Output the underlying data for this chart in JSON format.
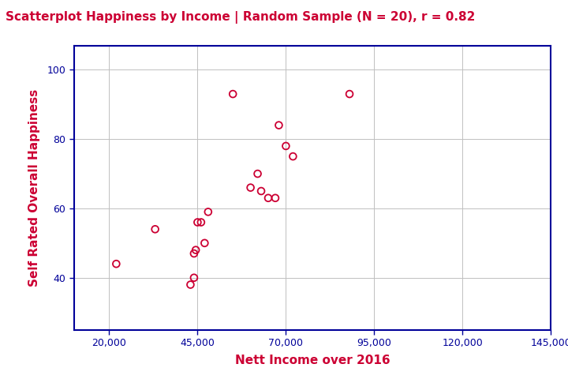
{
  "title": "Scatterplot Happiness by Income | Random Sample (N = 20), r = 0.82",
  "xlabel": "Nett Income over 2016",
  "ylabel": "Self Rated Overall Happiness",
  "title_color": "#cc0033",
  "label_color": "#cc0033",
  "axis_color": "#000099",
  "marker_color": "#cc0033",
  "background_color": "#ffffff",
  "grid_color": "#c0c0c0",
  "xlim": [
    10000,
    145000
  ],
  "ylim": [
    25,
    107
  ],
  "xticks": [
    20000,
    45000,
    70000,
    95000,
    120000,
    145000
  ],
  "yticks": [
    40,
    60,
    80,
    100
  ],
  "x": [
    22000,
    33000,
    43000,
    44000,
    44000,
    44500,
    45000,
    46000,
    47000,
    48000,
    55000,
    60000,
    62000,
    63000,
    65000,
    67000,
    68000,
    70000,
    72000,
    88000
  ],
  "y": [
    44,
    54,
    38,
    40,
    47,
    48,
    56,
    56,
    50,
    59,
    93,
    66,
    70,
    65,
    63,
    63,
    84,
    78,
    75,
    93
  ],
  "title_fontsize": 11,
  "label_fontsize": 11,
  "tick_fontsize": 9,
  "marker_size": 40,
  "marker_linewidth": 1.3
}
